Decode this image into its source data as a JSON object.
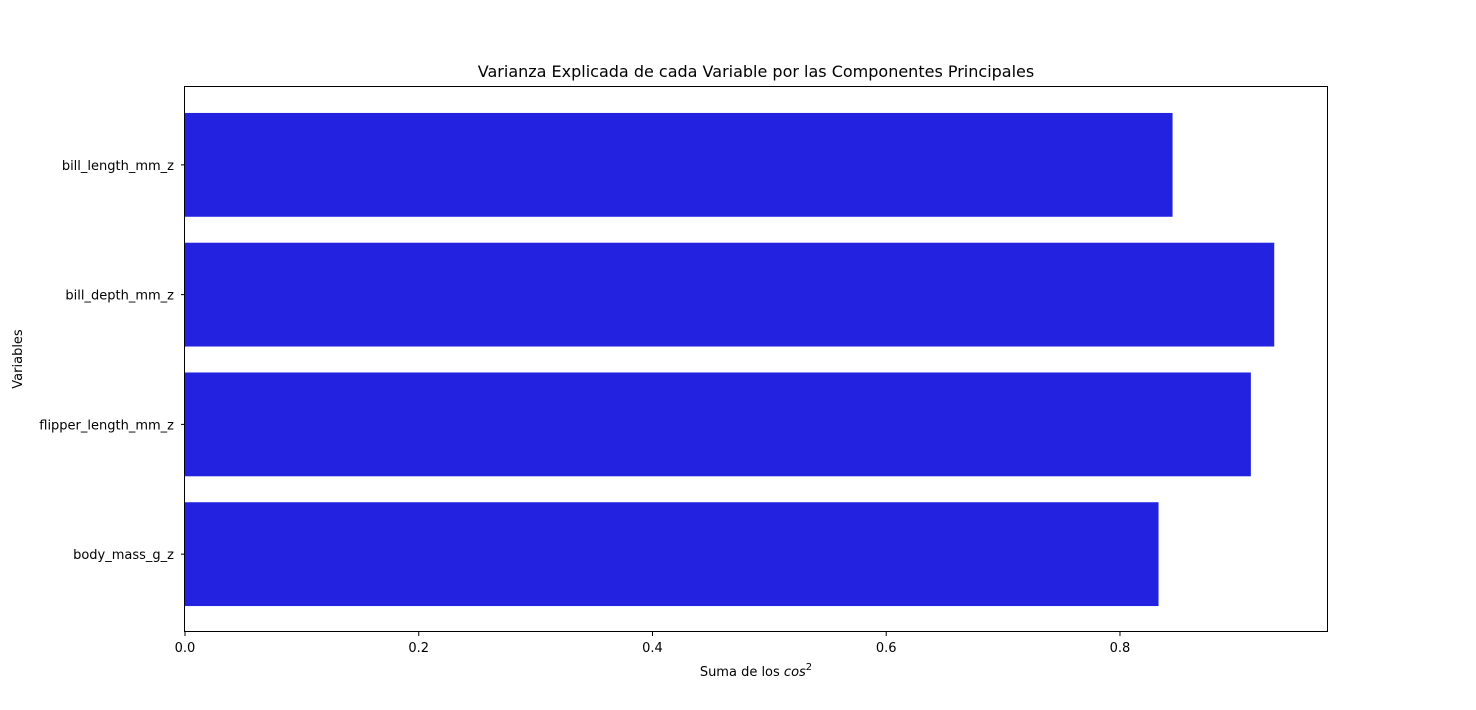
{
  "chart_data": {
    "type": "bar",
    "orientation": "horizontal",
    "title": "Varianza Explicada de cada Variable por las Componentes Principales",
    "xlabel_prefix": "Suma de los ",
    "xlabel_math": "cos",
    "xlabel_sup": "2",
    "ylabel": "Variables",
    "categories": [
      "bill_length_mm_z",
      "bill_depth_mm_z",
      "flipper_length_mm_z",
      "body_mass_g_z"
    ],
    "values": [
      0.845,
      0.932,
      0.912,
      0.833
    ],
    "xticks": [
      "0.0",
      "0.2",
      "0.4",
      "0.6",
      "0.8"
    ],
    "xlim": [
      0,
      0.978
    ],
    "bar_color": "#2222e0",
    "grid": false,
    "legend": "none"
  }
}
